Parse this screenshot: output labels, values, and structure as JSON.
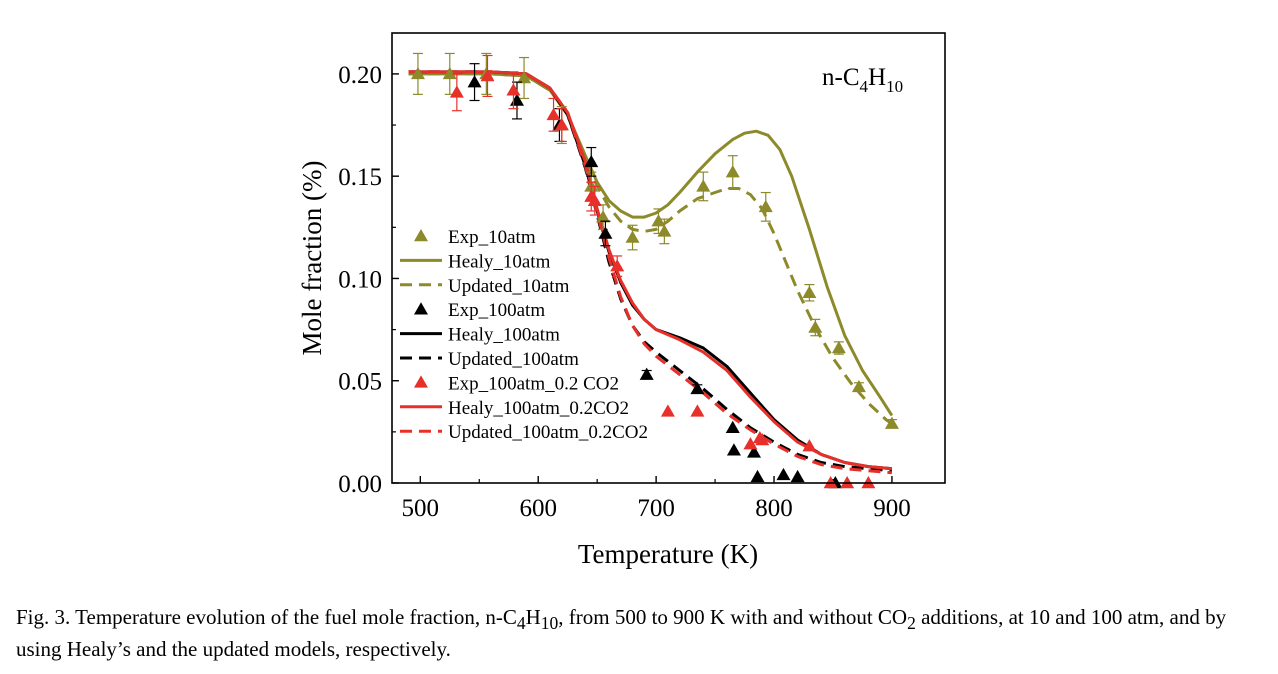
{
  "chart_data": {
    "type": "line",
    "annotation": {
      "prefix": "n-C",
      "sub1": "4",
      "mid": "H",
      "sub2": "10"
    },
    "xlabel": "Temperature (K)",
    "ylabel": "Mole fraction (%)",
    "xlim": [
      476,
      945
    ],
    "ylim": [
      0,
      0.22
    ],
    "xticks": [
      500,
      600,
      700,
      800,
      900
    ],
    "yticks": [
      0.0,
      0.05,
      0.1,
      0.15,
      0.2
    ],
    "xtick_labels": [
      "500",
      "600",
      "700",
      "800",
      "900"
    ],
    "ytick_labels": [
      "0.00",
      "0.05",
      "0.10",
      "0.15",
      "0.20"
    ],
    "legend_position": "middle-left",
    "colors": {
      "olive": "#8c8a2a",
      "black": "#000000",
      "red": "#e8302a"
    },
    "series": [
      {
        "name": "Exp_10atm",
        "kind": "scatter",
        "color": "#8c8a2a",
        "x": [
          498,
          525,
          556,
          588,
          620,
          645,
          655,
          680,
          702,
          707,
          740,
          765,
          793,
          830,
          835,
          855,
          872,
          900
        ],
        "y": [
          0.2,
          0.2,
          0.2,
          0.198,
          0.175,
          0.145,
          0.13,
          0.12,
          0.128,
          0.123,
          0.145,
          0.152,
          0.135,
          0.093,
          0.076,
          0.066,
          0.047,
          0.029
        ],
        "err": [
          0.01,
          0.01,
          0.01,
          0.01,
          0.009,
          0.007,
          0.006,
          0.006,
          0.006,
          0.006,
          0.007,
          0.008,
          0.007,
          0.004,
          0.004,
          0.003,
          0.002,
          0.002
        ]
      },
      {
        "name": "Healy_10atm",
        "kind": "line",
        "style": "solid",
        "color": "#8c8a2a",
        "x": [
          490,
          520,
          560,
          590,
          610,
          625,
          640,
          650,
          660,
          670,
          680,
          690,
          700,
          710,
          720,
          735,
          750,
          765,
          775,
          785,
          795,
          805,
          815,
          830,
          845,
          860,
          875,
          890,
          900
        ],
        "y": [
          0.2,
          0.2,
          0.2,
          0.199,
          0.192,
          0.18,
          0.16,
          0.147,
          0.138,
          0.133,
          0.13,
          0.13,
          0.132,
          0.136,
          0.142,
          0.152,
          0.161,
          0.168,
          0.171,
          0.172,
          0.17,
          0.163,
          0.15,
          0.124,
          0.096,
          0.072,
          0.055,
          0.042,
          0.033
        ]
      },
      {
        "name": "Updated_10atm",
        "kind": "line",
        "style": "dashed",
        "color": "#8c8a2a",
        "x": [
          490,
          520,
          560,
          590,
          610,
          625,
          640,
          650,
          660,
          670,
          680,
          690,
          700,
          710,
          720,
          735,
          750,
          760,
          770,
          780,
          790,
          800,
          810,
          820,
          835,
          850,
          865,
          880,
          895,
          900
        ],
        "y": [
          0.2,
          0.2,
          0.2,
          0.199,
          0.192,
          0.18,
          0.158,
          0.145,
          0.135,
          0.128,
          0.124,
          0.123,
          0.124,
          0.128,
          0.133,
          0.139,
          0.142,
          0.144,
          0.144,
          0.141,
          0.134,
          0.122,
          0.108,
          0.094,
          0.076,
          0.061,
          0.049,
          0.039,
          0.031,
          0.029
        ]
      },
      {
        "name": "Exp_100atm",
        "kind": "scatter",
        "color": "#000000",
        "x": [
          546,
          582,
          618,
          645,
          657,
          692,
          735,
          765,
          766,
          783,
          786,
          808,
          820,
          852
        ],
        "y": [
          0.196,
          0.187,
          0.175,
          0.157,
          0.122,
          0.053,
          0.046,
          0.027,
          0.016,
          0.015,
          0.003,
          0.004,
          0.003,
          0.0
        ],
        "err": [
          0.009,
          0.009,
          0.008,
          0.007,
          0.006,
          0.002,
          0.002,
          0,
          0,
          0,
          0,
          0,
          0,
          0
        ]
      },
      {
        "name": "Healy_100atm",
        "kind": "line",
        "style": "solid",
        "color": "#000000",
        "x": [
          490,
          560,
          590,
          610,
          625,
          640,
          650,
          660,
          670,
          680,
          690,
          700,
          720,
          740,
          760,
          780,
          800,
          820,
          840,
          860,
          880,
          900
        ],
        "y": [
          0.201,
          0.201,
          0.2,
          0.193,
          0.18,
          0.155,
          0.133,
          0.113,
          0.098,
          0.087,
          0.08,
          0.075,
          0.071,
          0.066,
          0.057,
          0.044,
          0.031,
          0.021,
          0.014,
          0.01,
          0.008,
          0.007
        ]
      },
      {
        "name": "Updated_100atm",
        "kind": "line",
        "style": "dashed",
        "color": "#000000",
        "x": [
          490,
          560,
          590,
          610,
          625,
          640,
          650,
          660,
          670,
          680,
          690,
          700,
          720,
          740,
          760,
          780,
          800,
          820,
          840,
          860,
          880,
          900
        ],
        "y": [
          0.201,
          0.201,
          0.2,
          0.193,
          0.18,
          0.154,
          0.131,
          0.108,
          0.09,
          0.077,
          0.069,
          0.064,
          0.055,
          0.046,
          0.036,
          0.027,
          0.02,
          0.014,
          0.01,
          0.008,
          0.007,
          0.006
        ]
      },
      {
        "name": "Exp_100atm_0.2 CO2",
        "kind": "scatter",
        "color": "#e8302a",
        "x": [
          531,
          557,
          579,
          613,
          620,
          645,
          648,
          667,
          710,
          735,
          780,
          788,
          790,
          830,
          848,
          862,
          880
        ],
        "y": [
          0.191,
          0.199,
          0.192,
          0.18,
          0.175,
          0.14,
          0.138,
          0.106,
          0.035,
          0.035,
          0.019,
          0.022,
          0.021,
          0.018,
          0.0,
          0.0,
          0.0
        ],
        "err": [
          0.009,
          0.01,
          0.009,
          0.008,
          0.008,
          0.007,
          0.007,
          0.005,
          0,
          0,
          0,
          0,
          0,
          0,
          0,
          0,
          0
        ]
      },
      {
        "name": "Healy_100atm_0.2CO2",
        "kind": "line",
        "style": "solid",
        "color": "#e8302a",
        "x": [
          490,
          560,
          590,
          610,
          625,
          640,
          650,
          660,
          670,
          680,
          690,
          700,
          720,
          740,
          760,
          780,
          800,
          820,
          840,
          860,
          880,
          900
        ],
        "y": [
          0.201,
          0.201,
          0.2,
          0.193,
          0.181,
          0.157,
          0.134,
          0.114,
          0.099,
          0.088,
          0.08,
          0.075,
          0.07,
          0.064,
          0.055,
          0.042,
          0.03,
          0.02,
          0.014,
          0.01,
          0.008,
          0.007
        ]
      },
      {
        "name": "Updated_100atm_0.2CO2",
        "kind": "line",
        "style": "dashed",
        "color": "#e8302a",
        "x": [
          490,
          560,
          590,
          610,
          625,
          640,
          650,
          660,
          670,
          680,
          690,
          700,
          720,
          740,
          760,
          780,
          800,
          820,
          840,
          860,
          880,
          900
        ],
        "y": [
          0.201,
          0.201,
          0.2,
          0.193,
          0.181,
          0.155,
          0.132,
          0.11,
          0.091,
          0.077,
          0.068,
          0.062,
          0.053,
          0.044,
          0.034,
          0.026,
          0.019,
          0.013,
          0.009,
          0.007,
          0.006,
          0.005
        ]
      }
    ]
  },
  "caption": {
    "lead": "Fig. 3.  Temperature evolution of the fuel mole fraction, n-C",
    "sub1": "4",
    "mid1": "H",
    "sub2": "10",
    "mid2": ", from 500 to 900 K with and without CO",
    "sub3": "2",
    "tail": " additions, at 10 and 100 atm, and by using Healy’s and the updated models, respectively."
  }
}
